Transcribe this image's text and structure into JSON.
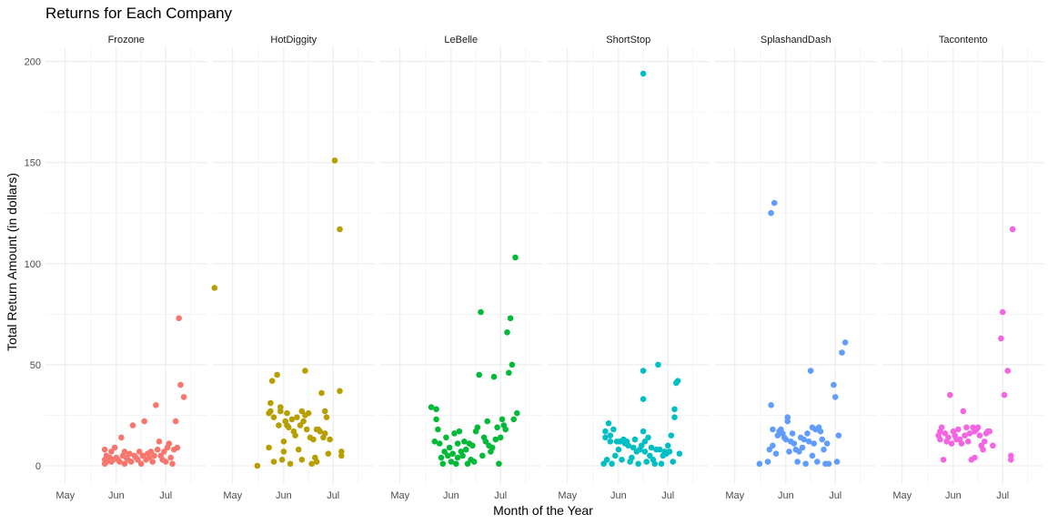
{
  "chart_data": {
    "type": "scatter",
    "title": "Returns for Each Company",
    "xlabel": "Month of the Year",
    "ylabel": "Total Return Amount (in dollars)",
    "ylim": [
      -9,
      207
    ],
    "x_ticks": [
      "May",
      "Jun",
      "Jul"
    ],
    "y_ticks": [
      0,
      50,
      100,
      150,
      200
    ],
    "x_tick_days": [
      0,
      31,
      61
    ],
    "xlim_days": [
      -12,
      86
    ],
    "grid": true,
    "facets": [
      {
        "name": "Frozone",
        "color": "#F8766D",
        "points": [
          [
            24,
            1
          ],
          [
            24,
            3
          ],
          [
            24,
            8
          ],
          [
            25,
            2
          ],
          [
            25,
            5
          ],
          [
            26,
            3
          ],
          [
            27,
            4
          ],
          [
            28,
            2
          ],
          [
            28,
            7
          ],
          [
            29,
            3
          ],
          [
            30,
            9
          ],
          [
            31,
            4
          ],
          [
            32,
            3
          ],
          [
            33,
            2
          ],
          [
            34,
            14
          ],
          [
            35,
            5
          ],
          [
            36,
            7
          ],
          [
            36,
            1
          ],
          [
            37,
            4
          ],
          [
            38,
            3
          ],
          [
            39,
            6
          ],
          [
            40,
            2
          ],
          [
            41,
            20
          ],
          [
            42,
            5
          ],
          [
            43,
            4
          ],
          [
            44,
            3
          ],
          [
            45,
            7
          ],
          [
            46,
            1
          ],
          [
            47,
            5
          ],
          [
            48,
            22
          ],
          [
            49,
            3
          ],
          [
            50,
            6
          ],
          [
            51,
            4
          ],
          [
            52,
            7
          ],
          [
            53,
            2
          ],
          [
            54,
            5
          ],
          [
            55,
            30
          ],
          [
            56,
            8
          ],
          [
            57,
            12
          ],
          [
            58,
            5
          ],
          [
            59,
            3
          ],
          [
            60,
            7
          ],
          [
            61,
            2
          ],
          [
            62,
            9
          ],
          [
            63,
            11
          ],
          [
            64,
            4
          ],
          [
            65,
            1
          ],
          [
            66,
            8
          ],
          [
            67,
            22
          ],
          [
            68,
            9
          ],
          [
            69,
            73
          ],
          [
            70,
            40
          ],
          [
            72,
            34
          ]
        ]
      },
      {
        "name": "HotDiggity",
        "color": "#B79F00",
        "points": [
          [
            -11,
            88
          ],
          [
            15,
            0
          ],
          [
            22,
            26
          ],
          [
            22,
            9
          ],
          [
            23,
            27
          ],
          [
            23,
            31
          ],
          [
            24,
            42
          ],
          [
            25,
            24
          ],
          [
            25,
            2
          ],
          [
            27,
            45
          ],
          [
            28,
            20
          ],
          [
            29,
            29
          ],
          [
            29,
            27
          ],
          [
            30,
            3
          ],
          [
            31,
            7
          ],
          [
            31,
            12
          ],
          [
            32,
            22
          ],
          [
            33,
            26
          ],
          [
            33,
            20
          ],
          [
            34,
            19
          ],
          [
            35,
            1
          ],
          [
            36,
            23
          ],
          [
            37,
            17
          ],
          [
            38,
            15
          ],
          [
            39,
            24
          ],
          [
            40,
            8
          ],
          [
            41,
            20
          ],
          [
            42,
            3
          ],
          [
            42,
            27
          ],
          [
            43,
            22
          ],
          [
            44,
            25
          ],
          [
            44,
            47
          ],
          [
            45,
            18
          ],
          [
            46,
            26
          ],
          [
            47,
            14
          ],
          [
            48,
            1
          ],
          [
            49,
            13
          ],
          [
            50,
            4
          ],
          [
            51,
            18
          ],
          [
            51,
            2
          ],
          [
            52,
            18
          ],
          [
            53,
            17
          ],
          [
            54,
            36
          ],
          [
            55,
            14
          ],
          [
            56,
            16
          ],
          [
            56,
            27
          ],
          [
            57,
            24
          ],
          [
            58,
            6
          ],
          [
            59,
            13
          ],
          [
            62,
            151
          ],
          [
            65,
            117
          ],
          [
            65,
            37
          ],
          [
            66,
            7
          ],
          [
            66,
            5
          ]
        ]
      },
      {
        "name": "LeBelle",
        "color": "#00BA38",
        "points": [
          [
            19,
            29
          ],
          [
            21,
            12
          ],
          [
            22,
            23
          ],
          [
            22,
            28
          ],
          [
            23,
            18
          ],
          [
            24,
            11
          ],
          [
            25,
            4
          ],
          [
            26,
            1
          ],
          [
            27,
            7
          ],
          [
            28,
            14
          ],
          [
            29,
            5
          ],
          [
            30,
            9
          ],
          [
            31,
            2
          ],
          [
            32,
            6
          ],
          [
            33,
            16
          ],
          [
            34,
            1
          ],
          [
            35,
            11
          ],
          [
            35,
            4
          ],
          [
            36,
            17
          ],
          [
            37,
            7
          ],
          [
            38,
            5
          ],
          [
            39,
            12
          ],
          [
            40,
            8
          ],
          [
            41,
            1
          ],
          [
            42,
            11
          ],
          [
            43,
            3
          ],
          [
            44,
            10
          ],
          [
            45,
            2
          ],
          [
            46,
            17
          ],
          [
            47,
            19
          ],
          [
            48,
            45
          ],
          [
            49,
            76
          ],
          [
            50,
            5
          ],
          [
            51,
            14
          ],
          [
            52,
            12
          ],
          [
            53,
            22
          ],
          [
            54,
            10
          ],
          [
            55,
            7
          ],
          [
            56,
            9
          ],
          [
            57,
            44
          ],
          [
            58,
            13
          ],
          [
            59,
            19
          ],
          [
            60,
            1
          ],
          [
            61,
            14
          ],
          [
            62,
            23
          ],
          [
            63,
            20
          ],
          [
            64,
            18
          ],
          [
            65,
            66
          ],
          [
            66,
            46
          ],
          [
            67,
            73
          ],
          [
            68,
            50
          ],
          [
            69,
            23
          ],
          [
            70,
            103
          ],
          [
            71,
            26
          ]
        ]
      },
      {
        "name": "ShortStop",
        "color": "#00BFC4",
        "points": [
          [
            22,
            1
          ],
          [
            23,
            14
          ],
          [
            23,
            17
          ],
          [
            24,
            3
          ],
          [
            25,
            21
          ],
          [
            26,
            15
          ],
          [
            26,
            12
          ],
          [
            27,
            1
          ],
          [
            28,
            18
          ],
          [
            29,
            5
          ],
          [
            30,
            12
          ],
          [
            31,
            8
          ],
          [
            32,
            12
          ],
          [
            33,
            3
          ],
          [
            34,
            13
          ],
          [
            35,
            11
          ],
          [
            36,
            12
          ],
          [
            37,
            10
          ],
          [
            38,
            2
          ],
          [
            39,
            4
          ],
          [
            40,
            9
          ],
          [
            41,
            13
          ],
          [
            42,
            7
          ],
          [
            43,
            1
          ],
          [
            44,
            8
          ],
          [
            45,
            10
          ],
          [
            46,
            194
          ],
          [
            46,
            33
          ],
          [
            46,
            47
          ],
          [
            46,
            17
          ],
          [
            47,
            12
          ],
          [
            47,
            7
          ],
          [
            48,
            2
          ],
          [
            49,
            14
          ],
          [
            50,
            5
          ],
          [
            51,
            9
          ],
          [
            52,
            3
          ],
          [
            53,
            1
          ],
          [
            54,
            8
          ],
          [
            55,
            50
          ],
          [
            56,
            8
          ],
          [
            57,
            1
          ],
          [
            58,
            5
          ],
          [
            59,
            7
          ],
          [
            60,
            6
          ],
          [
            61,
            10
          ],
          [
            62,
            7
          ],
          [
            63,
            15
          ],
          [
            64,
            2
          ],
          [
            65,
            28
          ],
          [
            65,
            24
          ],
          [
            66,
            41
          ],
          [
            67,
            42
          ],
          [
            68,
            6
          ]
        ]
      },
      {
        "name": "SplashandDash",
        "color": "#619CFF",
        "points": [
          [
            15,
            1
          ],
          [
            20,
            2
          ],
          [
            21,
            8
          ],
          [
            22,
            125
          ],
          [
            22,
            30
          ],
          [
            23,
            10
          ],
          [
            23,
            18
          ],
          [
            24,
            130
          ],
          [
            25,
            6
          ],
          [
            26,
            15
          ],
          [
            27,
            17
          ],
          [
            28,
            18
          ],
          [
            29,
            16
          ],
          [
            30,
            14
          ],
          [
            31,
            13
          ],
          [
            32,
            24
          ],
          [
            32,
            22
          ],
          [
            33,
            7
          ],
          [
            34,
            12
          ],
          [
            35,
            16
          ],
          [
            36,
            11
          ],
          [
            37,
            8
          ],
          [
            38,
            2
          ],
          [
            39,
            7
          ],
          [
            40,
            14
          ],
          [
            41,
            9
          ],
          [
            42,
            13
          ],
          [
            43,
            1
          ],
          [
            44,
            16
          ],
          [
            45,
            12
          ],
          [
            46,
            47
          ],
          [
            47,
            19
          ],
          [
            47,
            5
          ],
          [
            48,
            11
          ],
          [
            49,
            18
          ],
          [
            50,
            2
          ],
          [
            51,
            19
          ],
          [
            52,
            17
          ],
          [
            53,
            13
          ],
          [
            54,
            8
          ],
          [
            55,
            1
          ],
          [
            56,
            11
          ],
          [
            57,
            1
          ],
          [
            60,
            40
          ],
          [
            61,
            34
          ],
          [
            62,
            2
          ],
          [
            63,
            15
          ],
          [
            65,
            56
          ],
          [
            67,
            61
          ]
        ]
      },
      {
        "name": "Tacontento",
        "color": "#F564E3",
        "points": [
          [
            22,
            15
          ],
          [
            23,
            13
          ],
          [
            23,
            17
          ],
          [
            24,
            19
          ],
          [
            25,
            3
          ],
          [
            26,
            16
          ],
          [
            27,
            12
          ],
          [
            28,
            14
          ],
          [
            29,
            35
          ],
          [
            30,
            11
          ],
          [
            31,
            17
          ],
          [
            32,
            15
          ],
          [
            33,
            13
          ],
          [
            34,
            18
          ],
          [
            35,
            13
          ],
          [
            36,
            11
          ],
          [
            37,
            27
          ],
          [
            38,
            15
          ],
          [
            39,
            19
          ],
          [
            40,
            12
          ],
          [
            41,
            16
          ],
          [
            42,
            3
          ],
          [
            43,
            19
          ],
          [
            44,
            17
          ],
          [
            44,
            4
          ],
          [
            45,
            18
          ],
          [
            46,
            19
          ],
          [
            47,
            15
          ],
          [
            48,
            10
          ],
          [
            49,
            8
          ],
          [
            50,
            12
          ],
          [
            51,
            16
          ],
          [
            52,
            17
          ],
          [
            53,
            17
          ],
          [
            55,
            10
          ],
          [
            60,
            63
          ],
          [
            61,
            76
          ],
          [
            62,
            35
          ],
          [
            64,
            47
          ],
          [
            66,
            5
          ],
          [
            66,
            3
          ],
          [
            67,
            117
          ]
        ]
      }
    ]
  }
}
